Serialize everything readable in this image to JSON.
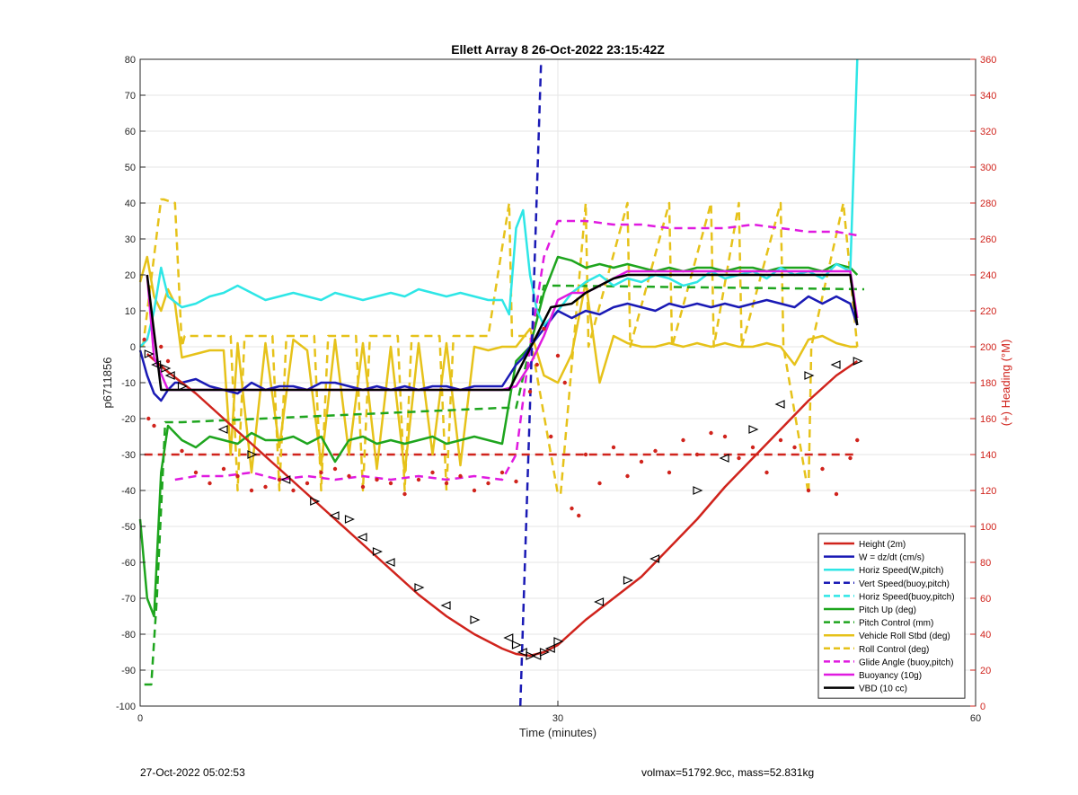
{
  "footer": {
    "timestamp": "27-Oct-2022 05:02:53",
    "summary": "volmax=51792.9cc, mass=52.831kg"
  },
  "chart_data": {
    "type": "line",
    "title": "Ellett Array 8 26-Oct-2022 23:15:42Z",
    "xlabel": "Time (minutes)",
    "ylabel": "p6711856",
    "y2label": "(+) Heading (°M)",
    "xlim": [
      0,
      60
    ],
    "ylim": [
      -100,
      80
    ],
    "y2lim": [
      0,
      360
    ],
    "xticks": [
      0,
      30,
      60
    ],
    "yticks": [
      -100,
      -90,
      -80,
      -70,
      -60,
      -50,
      -40,
      -30,
      -20,
      -10,
      0,
      10,
      20,
      30,
      40,
      50,
      60,
      70,
      80
    ],
    "y2ticks": [
      0,
      20,
      40,
      60,
      80,
      100,
      120,
      140,
      160,
      180,
      200,
      220,
      240,
      260,
      280,
      300,
      320,
      340,
      360
    ],
    "grid": true,
    "legend_position": "bottom-right",
    "colors": {
      "red": "#d0231c",
      "blue": "#1a1ab5",
      "cyan": "#2ee6e6",
      "green": "#1ea51e",
      "yellow": "#e6c21a",
      "magenta": "#e01ae0",
      "black": "#000000",
      "axis_right": "#d0231c"
    },
    "series": [
      {
        "name": "Height (2m)",
        "color": "#d0231c",
        "dash": false,
        "axis": "left",
        "x": [
          0.5,
          2,
          4,
          6,
          8,
          10,
          12,
          14,
          16,
          18,
          20,
          22,
          24,
          26,
          27,
          28,
          29,
          30,
          32,
          34,
          36,
          38,
          40,
          42,
          44,
          46,
          48,
          50,
          51.5
        ],
        "y": [
          -2,
          -7,
          -13,
          -20,
          -27,
          -34,
          -41,
          -48,
          -55,
          -62,
          -69,
          -75,
          -80,
          -84,
          -85.5,
          -86,
          -85,
          -83,
          -76,
          -70,
          -64,
          -56,
          -48,
          -39,
          -31,
          -23,
          -15,
          -8,
          -4
        ]
      },
      {
        "name": "W = dz/dt (cm/s)",
        "color": "#1a1ab5",
        "dash": false,
        "axis": "left",
        "x": [
          0,
          0.5,
          1,
          1.5,
          2,
          2.5,
          3,
          4,
          5,
          6,
          7,
          8,
          9,
          10,
          11,
          12,
          13,
          14,
          15,
          16,
          17,
          18,
          19,
          20,
          21,
          22,
          23,
          24,
          25,
          26,
          27,
          27.5,
          28,
          29,
          30,
          31,
          32,
          33,
          34,
          35,
          36,
          37,
          38,
          39,
          40,
          41,
          42,
          43,
          44,
          45,
          46,
          47,
          48,
          49,
          50,
          51,
          51.5
        ],
        "y": [
          -1,
          -8,
          -13,
          -15,
          -12,
          -10,
          -10,
          -9,
          -11,
          -12,
          -13,
          -10,
          -12,
          -11,
          -11,
          -12,
          -10,
          -10,
          -11,
          -12,
          -11,
          -12,
          -11,
          -12,
          -11,
          -11,
          -12,
          -11,
          -11,
          -11,
          -5,
          -3,
          0,
          5,
          10,
          8,
          10,
          9,
          11,
          12,
          11,
          10,
          12,
          11,
          12,
          11,
          12,
          11,
          12,
          13,
          12,
          11,
          14,
          12,
          14,
          12,
          6
        ]
      },
      {
        "name": "Horiz Speed(W,pitch)",
        "color": "#2ee6e6",
        "dash": false,
        "axis": "left",
        "x": [
          0,
          0.5,
          1,
          1.5,
          2,
          3,
          4,
          5,
          6,
          7,
          8,
          9,
          10,
          11,
          12,
          13,
          14,
          15,
          16,
          17,
          18,
          19,
          20,
          21,
          22,
          23,
          24,
          25,
          26,
          26.5,
          27,
          27.5,
          28,
          28.5,
          29,
          30,
          31,
          32,
          33,
          34,
          35,
          36,
          37,
          38,
          39,
          40,
          41,
          42,
          43,
          44,
          45,
          46,
          47,
          48,
          49,
          50,
          51,
          51.5
        ],
        "y": [
          0,
          2,
          10,
          22,
          14,
          11,
          12,
          14,
          15,
          17,
          15,
          13,
          14,
          15,
          14,
          13,
          15,
          14,
          13,
          14,
          15,
          14,
          16,
          15,
          14,
          15,
          14,
          13,
          13,
          9,
          33,
          38,
          20,
          10,
          6,
          10,
          15,
          18,
          20,
          17,
          19,
          18,
          20,
          19,
          17,
          18,
          21,
          19,
          20,
          21,
          19,
          22,
          20,
          21,
          19,
          23,
          21,
          80
        ]
      },
      {
        "name": "Vert Speed(buoy,pitch)",
        "color": "#1a1ab5",
        "dash": true,
        "axis": "left",
        "x": [
          27.3,
          28.8
        ],
        "y": [
          -100,
          80
        ]
      },
      {
        "name": "Horiz Speed(buoy,pitch)",
        "color": "#2ee6e6",
        "dash": true,
        "axis": "left",
        "x": [],
        "y": []
      },
      {
        "name": "Pitch Up (deg)",
        "color": "#1ea51e",
        "dash": false,
        "axis": "left",
        "x": [
          0,
          0.5,
          1,
          1.5,
          2,
          3,
          4,
          5,
          6,
          7,
          8,
          9,
          10,
          11,
          12,
          13,
          14,
          15,
          16,
          17,
          18,
          19,
          20,
          21,
          22,
          23,
          24,
          25,
          26,
          27,
          28,
          29,
          30,
          31,
          32,
          33,
          34,
          35,
          36,
          37,
          38,
          39,
          40,
          41,
          42,
          43,
          44,
          45,
          46,
          47,
          48,
          49,
          50,
          51,
          51.5
        ],
        "y": [
          -48,
          -70,
          -75,
          -35,
          -22,
          -26,
          -28,
          -25,
          -26,
          -27,
          -24,
          -26,
          -26,
          -25,
          -27,
          -25,
          -32,
          -26,
          -25,
          -27,
          -26,
          -27,
          -26,
          -25,
          -27,
          -26,
          -25,
          -26,
          -27,
          -4,
          0,
          15,
          25,
          24,
          22,
          23,
          22,
          23,
          22,
          21,
          22,
          21,
          22,
          22,
          21,
          22,
          22,
          21,
          22,
          22,
          22,
          21,
          23,
          22,
          20
        ]
      },
      {
        "name": "Pitch Control (mm)",
        "color": "#1ea51e",
        "dash": true,
        "axis": "left",
        "x": [
          0.3,
          0.8,
          1.2,
          1.8,
          3,
          26,
          27,
          29,
          30,
          52
        ],
        "y": [
          -94,
          -94,
          -70,
          -21,
          -21,
          -17,
          -17,
          17,
          17,
          16
        ]
      },
      {
        "name": "Vehicle Roll Stbd (deg)",
        "color": "#e6c21a",
        "dash": false,
        "axis": "left",
        "x": [
          0,
          0.5,
          1,
          1.5,
          2,
          2.5,
          3,
          4,
          5,
          6,
          6.5,
          7,
          8,
          9,
          10,
          11,
          12,
          13,
          14,
          15,
          16,
          17,
          18,
          19,
          20,
          21,
          22,
          23,
          24,
          25,
          26,
          27,
          28,
          29,
          30,
          31,
          32,
          33,
          34,
          35,
          36,
          37,
          38,
          39,
          40,
          41,
          42,
          43,
          44,
          45,
          46,
          47,
          48,
          49,
          50,
          51,
          51.5
        ],
        "y": [
          18,
          25,
          14,
          10,
          16,
          12,
          -3,
          -2,
          -1,
          -1,
          -30,
          1,
          -35,
          1,
          -28,
          2,
          -1,
          -33,
          2,
          -30,
          1,
          -34,
          0,
          -35,
          1,
          -30,
          1,
          -33,
          0,
          -1,
          0,
          0,
          5,
          -8,
          -10,
          -2,
          18,
          -10,
          3,
          1,
          0,
          0,
          1,
          0,
          1,
          0,
          1,
          0,
          0,
          1,
          0,
          -5,
          2,
          3,
          1,
          0,
          0
        ]
      },
      {
        "name": "Roll Control (deg)",
        "color": "#e6c21a",
        "dash": true,
        "axis": "left",
        "x": [
          0.2,
          1.5,
          1.7,
          2.5,
          3,
          3.2,
          6.5,
          7,
          7.5,
          9.5,
          10,
          10.5,
          12.5,
          13,
          13.5,
          15.5,
          16,
          16.5,
          18.5,
          19,
          19.5,
          21.5,
          22,
          22.5,
          24.5,
          25,
          26.5,
          26.7,
          27,
          28,
          30,
          30.2,
          32,
          32.2,
          35,
          35.2,
          38,
          38.2,
          41,
          41.2,
          43,
          43.2,
          46,
          46.2,
          48,
          48.2,
          50.5,
          51.5
        ],
        "y": [
          0,
          41,
          41,
          40,
          0,
          3,
          3,
          -40,
          3,
          3,
          -40,
          3,
          3,
          -40,
          3,
          3,
          -40,
          3,
          3,
          -40,
          3,
          3,
          -40,
          3,
          3,
          3,
          40,
          3,
          3,
          3,
          -41,
          -41,
          40,
          0,
          40,
          0,
          40,
          0,
          40,
          0,
          40,
          0,
          40,
          0,
          -41,
          0,
          40,
          0
        ]
      },
      {
        "name": "Glide Angle (buoy,pitch)",
        "color": "#e01ae0",
        "dash": true,
        "axis": "left",
        "x": [
          2.5,
          4,
          6,
          8,
          10,
          12,
          14,
          16,
          18,
          20,
          22,
          24,
          26,
          27,
          28,
          29,
          30,
          32,
          34,
          36,
          38,
          40,
          42,
          44,
          46,
          48,
          50,
          51.5
        ],
        "y": [
          -37,
          -36,
          -36,
          -35,
          -37,
          -36,
          -37,
          -36,
          -37,
          -36,
          -37,
          -36,
          -37,
          -30,
          0,
          25,
          35,
          35,
          34,
          34,
          33,
          33,
          33,
          34,
          33,
          32,
          32,
          31
        ]
      },
      {
        "name": "Buoyancy (10g)",
        "color": "#e01ae0",
        "dash": false,
        "axis": "left",
        "x": [
          0.5,
          1,
          2,
          26,
          27,
          28,
          29,
          30,
          31,
          32,
          33,
          34,
          35,
          36,
          40,
          45,
          51,
          51.5
        ],
        "y": [
          20,
          -3,
          -12,
          -12,
          -11,
          -5,
          3,
          13,
          15,
          15,
          17,
          19,
          21,
          21,
          21,
          21,
          21,
          8
        ]
      },
      {
        "name": "VBD (10 cc)",
        "color": "#000000",
        "dash": false,
        "axis": "left",
        "x": [
          0.5,
          1.5,
          26.5,
          29.5,
          31,
          32,
          33,
          34,
          35,
          40,
          45,
          51,
          51.5
        ],
        "y": [
          20,
          -12,
          -12,
          11,
          12,
          15,
          17,
          19,
          20,
          20,
          20,
          20,
          6
        ]
      }
    ],
    "hidden_series": [
      {
        "name": "Heading Reference",
        "color": "#d0231c",
        "dash": true,
        "axis": "right",
        "x": [
          0.3,
          51.5
        ],
        "y": [
          140,
          140
        ]
      },
      {
        "name": "Heading Dots",
        "color": "#d0231c",
        "marker": "dot",
        "axis": "right",
        "x": [
          0.3,
          0.6,
          1,
          1.5,
          2,
          3,
          4,
          5,
          6,
          7,
          8,
          9,
          10,
          11,
          12,
          13,
          14,
          15,
          16,
          17,
          18,
          19,
          20,
          21,
          22,
          23,
          24,
          25,
          26,
          27,
          28,
          28.5,
          29,
          29.5,
          30,
          30.5,
          31,
          31.5,
          32,
          33,
          34,
          35,
          36,
          37,
          38,
          39,
          40,
          41,
          42,
          43,
          44,
          45,
          46,
          47,
          48,
          49,
          50,
          51,
          51.5
        ],
        "y": [
          204,
          160,
          156,
          200,
          192,
          142,
          130,
          124,
          132,
          128,
          120,
          122,
          126,
          120,
          124,
          130,
          132,
          128,
          122,
          126,
          124,
          118,
          126,
          130,
          124,
          128,
          120,
          124,
          130,
          125,
          175,
          190,
          210,
          150,
          195,
          180,
          110,
          106,
          140,
          124,
          144,
          128,
          136,
          142,
          130,
          148,
          140,
          152,
          150,
          138,
          144,
          130,
          148,
          144,
          120,
          132,
          118,
          138,
          148
        ]
      },
      {
        "name": "Dive Markers",
        "color": "#000000",
        "marker": "triangle",
        "axis": "left",
        "x": [
          0.6,
          1.2,
          1.8,
          2.2,
          3,
          6,
          8,
          10.5,
          12.5,
          14,
          15,
          16,
          17,
          18,
          20,
          22,
          24,
          26.5,
          27,
          27.5,
          28,
          28.5,
          29,
          29.5,
          30,
          33,
          35,
          37,
          40,
          42,
          44,
          46,
          48,
          50,
          51.5
        ],
        "y": [
          -2,
          -5,
          -6,
          -8,
          -11,
          -23,
          -30,
          -37,
          -43,
          -47,
          -48,
          -53,
          -57,
          -60,
          -67,
          -72,
          -76,
          -81,
          -83,
          -85,
          -86,
          -86,
          -85,
          -84,
          -82,
          -71,
          -65,
          -59,
          -40,
          -31,
          -23,
          -16,
          -8,
          -5,
          -4
        ]
      }
    ]
  }
}
